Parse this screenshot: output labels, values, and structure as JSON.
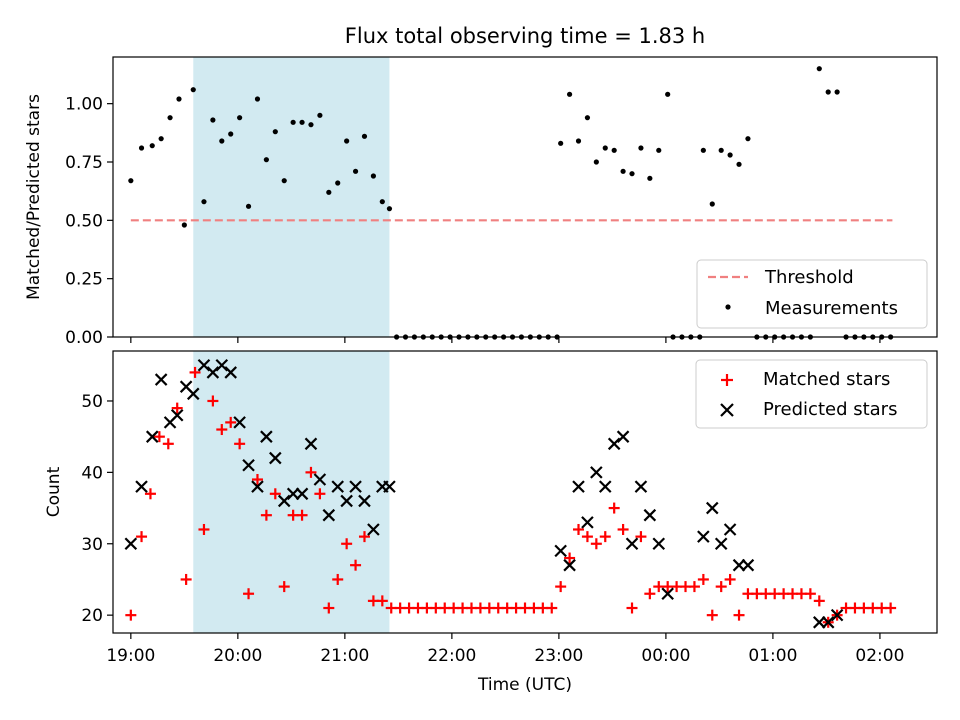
{
  "figure": {
    "title": "Flux total observing time = 1.83 h"
  },
  "chart_data": [
    {
      "type": "scatter",
      "title": "Flux total observing time = 1.83 h",
      "xlabel": "",
      "ylabel": "Matched/Predicted stars",
      "x_axis": "time (UTC), night 19:00 → 02:00",
      "xlim": [
        "18:50",
        "02:32"
      ],
      "ylim": [
        0,
        1.2
      ],
      "yticks": [
        "0.00",
        "0.25",
        "0.50",
        "0.75",
        "1.00"
      ],
      "xticks": [
        "19:00",
        "20:00",
        "21:00",
        "22:00",
        "23:00",
        "00:00",
        "01:00",
        "02:00"
      ],
      "shaded_region": {
        "start": "19:35",
        "end": "21:25",
        "color": "#add8e6"
      },
      "legend_position": "lower right",
      "series": [
        {
          "name": "Threshold",
          "kind": "dashed-line",
          "color": "#f08080",
          "points": [
            [
              "19:00",
              0.5
            ],
            [
              "02:07",
              0.5
            ]
          ]
        },
        {
          "name": "Measurements",
          "kind": "dot",
          "color": "#000000",
          "points": [
            [
              "19:00",
              0.67
            ],
            [
              "19:06",
              0.81
            ],
            [
              "19:12",
              0.82
            ],
            [
              "19:17",
              0.85
            ],
            [
              "19:22",
              0.94
            ],
            [
              "19:27",
              1.02
            ],
            [
              "19:30",
              0.48
            ],
            [
              "19:35",
              1.06
            ],
            [
              "19:41",
              0.58
            ],
            [
              "19:46",
              0.93
            ],
            [
              "19:51",
              0.84
            ],
            [
              "19:56",
              0.87
            ],
            [
              "20:01",
              0.94
            ],
            [
              "20:06",
              0.56
            ],
            [
              "20:11",
              1.02
            ],
            [
              "20:16",
              0.76
            ],
            [
              "20:21",
              0.88
            ],
            [
              "20:26",
              0.67
            ],
            [
              "20:31",
              0.92
            ],
            [
              "20:36",
              0.92
            ],
            [
              "20:41",
              0.91
            ],
            [
              "20:46",
              0.95
            ],
            [
              "20:51",
              0.62
            ],
            [
              "20:56",
              0.66
            ],
            [
              "21:01",
              0.84
            ],
            [
              "21:06",
              0.71
            ],
            [
              "21:11",
              0.86
            ],
            [
              "21:16",
              0.69
            ],
            [
              "21:21",
              0.58
            ],
            [
              "21:25",
              0.55
            ],
            [
              "21:29",
              0.0
            ],
            [
              "21:34",
              0.0
            ],
            [
              "21:39",
              0.0
            ],
            [
              "21:44",
              0.0
            ],
            [
              "21:49",
              0.0
            ],
            [
              "21:54",
              0.0
            ],
            [
              "21:59",
              0.0
            ],
            [
              "22:04",
              0.0
            ],
            [
              "22:09",
              0.0
            ],
            [
              "22:14",
              0.0
            ],
            [
              "22:19",
              0.0
            ],
            [
              "22:24",
              0.0
            ],
            [
              "22:29",
              0.0
            ],
            [
              "22:34",
              0.0
            ],
            [
              "22:39",
              0.0
            ],
            [
              "22:44",
              0.0
            ],
            [
              "22:49",
              0.0
            ],
            [
              "22:54",
              0.0
            ],
            [
              "22:59",
              0.0
            ],
            [
              "23:01",
              0.83
            ],
            [
              "23:06",
              1.04
            ],
            [
              "23:11",
              0.84
            ],
            [
              "23:16",
              0.94
            ],
            [
              "23:21",
              0.75
            ],
            [
              "23:26",
              0.81
            ],
            [
              "23:31",
              0.8
            ],
            [
              "23:36",
              0.71
            ],
            [
              "23:41",
              0.7
            ],
            [
              "23:46",
              0.81
            ],
            [
              "23:51",
              0.68
            ],
            [
              "23:56",
              0.8
            ],
            [
              "00:01",
              1.04
            ],
            [
              "00:04",
              0.0
            ],
            [
              "00:09",
              0.0
            ],
            [
              "00:14",
              0.0
            ],
            [
              "00:19",
              0.0
            ],
            [
              "00:21",
              0.8
            ],
            [
              "00:26",
              0.57
            ],
            [
              "00:31",
              0.8
            ],
            [
              "00:36",
              0.78
            ],
            [
              "00:41",
              0.74
            ],
            [
              "00:46",
              0.85
            ],
            [
              "00:51",
              0.0
            ],
            [
              "00:56",
              0.0
            ],
            [
              "01:01",
              0.0
            ],
            [
              "01:06",
              0.0
            ],
            [
              "01:11",
              0.0
            ],
            [
              "01:16",
              0.0
            ],
            [
              "01:21",
              0.0
            ],
            [
              "01:26",
              1.15
            ],
            [
              "01:31",
              1.05
            ],
            [
              "01:36",
              1.05
            ],
            [
              "01:41",
              0.0
            ],
            [
              "01:46",
              0.0
            ],
            [
              "01:51",
              0.0
            ],
            [
              "01:56",
              0.0
            ],
            [
              "02:01",
              0.0
            ],
            [
              "02:06",
              0.0
            ]
          ]
        }
      ]
    },
    {
      "type": "scatter",
      "title": "",
      "xlabel": "Time (UTC)",
      "ylabel": "Count",
      "x_axis": "time (UTC), night 19:00 → 02:00",
      "xlim": [
        "18:50",
        "02:32"
      ],
      "ylim": [
        17.5,
        57
      ],
      "yticks": [
        "20",
        "30",
        "40",
        "50"
      ],
      "xticks": [
        "19:00",
        "20:00",
        "21:00",
        "22:00",
        "23:00",
        "00:00",
        "01:00",
        "02:00"
      ],
      "shaded_region": {
        "start": "19:35",
        "end": "21:25",
        "color": "#add8e6"
      },
      "legend_position": "upper right",
      "series": [
        {
          "name": "Matched stars",
          "kind": "plus",
          "color": "#ff0000",
          "points": [
            [
              "19:00",
              20
            ],
            [
              "19:06",
              31
            ],
            [
              "19:11",
              37
            ],
            [
              "19:16",
              45
            ],
            [
              "19:21",
              44
            ],
            [
              "19:26",
              49
            ],
            [
              "19:31",
              25
            ],
            [
              "19:36",
              54
            ],
            [
              "19:41",
              32
            ],
            [
              "19:46",
              50
            ],
            [
              "19:51",
              46
            ],
            [
              "19:56",
              47
            ],
            [
              "20:01",
              44
            ],
            [
              "20:06",
              23
            ],
            [
              "20:11",
              39
            ],
            [
              "20:16",
              34
            ],
            [
              "20:21",
              37
            ],
            [
              "20:26",
              24
            ],
            [
              "20:31",
              34
            ],
            [
              "20:36",
              34
            ],
            [
              "20:41",
              40
            ],
            [
              "20:46",
              37
            ],
            [
              "20:51",
              21
            ],
            [
              "20:56",
              25
            ],
            [
              "21:01",
              30
            ],
            [
              "21:06",
              27
            ],
            [
              "21:11",
              31
            ],
            [
              "21:16",
              22
            ],
            [
              "21:21",
              22
            ],
            [
              "21:26",
              21
            ],
            [
              "21:31",
              21
            ],
            [
              "21:36",
              21
            ],
            [
              "21:41",
              21
            ],
            [
              "21:46",
              21
            ],
            [
              "21:51",
              21
            ],
            [
              "21:56",
              21
            ],
            [
              "22:01",
              21
            ],
            [
              "22:06",
              21
            ],
            [
              "22:11",
              21
            ],
            [
              "22:16",
              21
            ],
            [
              "22:21",
              21
            ],
            [
              "22:26",
              21
            ],
            [
              "22:31",
              21
            ],
            [
              "22:36",
              21
            ],
            [
              "22:41",
              21
            ],
            [
              "22:46",
              21
            ],
            [
              "22:51",
              21
            ],
            [
              "22:56",
              21
            ],
            [
              "23:01",
              24
            ],
            [
              "23:06",
              28
            ],
            [
              "23:11",
              32
            ],
            [
              "23:16",
              31
            ],
            [
              "23:21",
              30
            ],
            [
              "23:26",
              31
            ],
            [
              "23:31",
              35
            ],
            [
              "23:36",
              32
            ],
            [
              "23:41",
              21
            ],
            [
              "23:46",
              31
            ],
            [
              "23:51",
              23
            ],
            [
              "23:56",
              24
            ],
            [
              "00:01",
              24
            ],
            [
              "00:06",
              24
            ],
            [
              "00:11",
              24
            ],
            [
              "00:16",
              24
            ],
            [
              "00:21",
              25
            ],
            [
              "00:26",
              20
            ],
            [
              "00:31",
              24
            ],
            [
              "00:36",
              25
            ],
            [
              "00:41",
              20
            ],
            [
              "00:46",
              23
            ],
            [
              "00:51",
              23
            ],
            [
              "00:56",
              23
            ],
            [
              "01:01",
              23
            ],
            [
              "01:06",
              23
            ],
            [
              "01:11",
              23
            ],
            [
              "01:16",
              23
            ],
            [
              "01:21",
              23
            ],
            [
              "01:26",
              22
            ],
            [
              "01:31",
              19
            ],
            [
              "01:36",
              20
            ],
            [
              "01:41",
              21
            ],
            [
              "01:46",
              21
            ],
            [
              "01:51",
              21
            ],
            [
              "01:56",
              21
            ],
            [
              "02:01",
              21
            ],
            [
              "02:06",
              21
            ]
          ]
        },
        {
          "name": "Predicted stars",
          "kind": "x",
          "color": "#000000",
          "points": [
            [
              "19:00",
              30
            ],
            [
              "19:06",
              38
            ],
            [
              "19:12",
              45
            ],
            [
              "19:17",
              53
            ],
            [
              "19:22",
              47
            ],
            [
              "19:26",
              48
            ],
            [
              "19:31",
              52
            ],
            [
              "19:35",
              51
            ],
            [
              "19:41",
              55
            ],
            [
              "19:46",
              54
            ],
            [
              "19:51",
              55
            ],
            [
              "19:56",
              54
            ],
            [
              "20:01",
              47
            ],
            [
              "20:06",
              41
            ],
            [
              "20:11",
              38
            ],
            [
              "20:16",
              45
            ],
            [
              "20:21",
              42
            ],
            [
              "20:26",
              36
            ],
            [
              "20:31",
              37
            ],
            [
              "20:36",
              37
            ],
            [
              "20:41",
              44
            ],
            [
              "20:46",
              39
            ],
            [
              "20:51",
              34
            ],
            [
              "20:56",
              38
            ],
            [
              "21:01",
              36
            ],
            [
              "21:06",
              38
            ],
            [
              "21:11",
              36
            ],
            [
              "21:16",
              32
            ],
            [
              "21:21",
              38
            ],
            [
              "21:25",
              38
            ],
            [
              "23:01",
              29
            ],
            [
              "23:06",
              27
            ],
            [
              "23:11",
              38
            ],
            [
              "23:16",
              33
            ],
            [
              "23:21",
              40
            ],
            [
              "23:26",
              38
            ],
            [
              "23:31",
              44
            ],
            [
              "23:36",
              45
            ],
            [
              "23:41",
              30
            ],
            [
              "23:46",
              38
            ],
            [
              "23:51",
              34
            ],
            [
              "23:56",
              30
            ],
            [
              "00:01",
              23
            ],
            [
              "00:21",
              31
            ],
            [
              "00:26",
              35
            ],
            [
              "00:31",
              30
            ],
            [
              "00:36",
              32
            ],
            [
              "00:41",
              27
            ],
            [
              "00:46",
              27
            ],
            [
              "01:26",
              19
            ],
            [
              "01:31",
              19
            ],
            [
              "01:36",
              20
            ]
          ]
        }
      ]
    }
  ]
}
